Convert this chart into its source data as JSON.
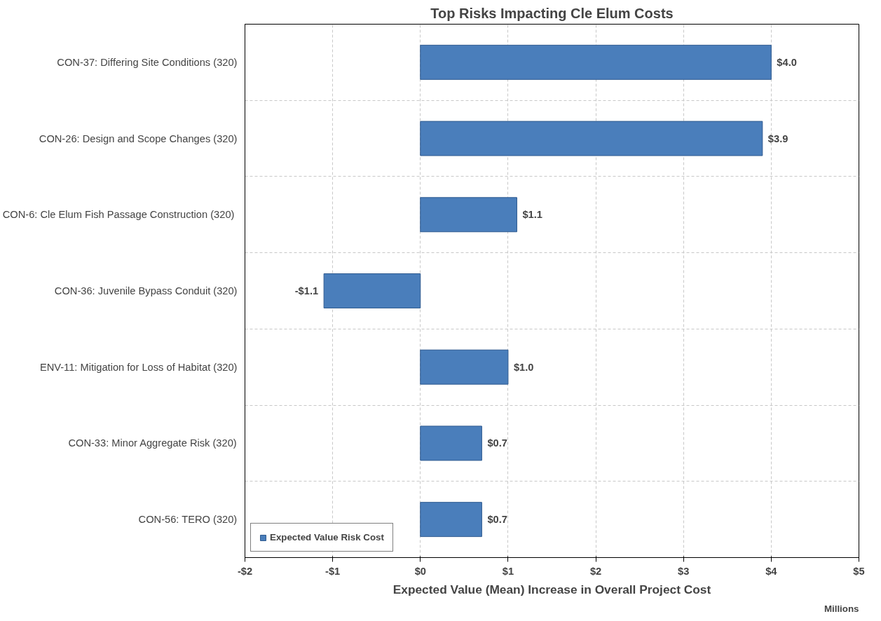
{
  "chart_data": {
    "type": "bar",
    "orientation": "horizontal",
    "title": "Top Risks Impacting Cle Elum Costs",
    "categories": [
      "CON-37: Differing Site Conditions (320)",
      "CON-26: Design and Scope Changes (320)",
      "CON-6: Cle Elum Fish Passage Construction  (320)",
      "CON-36: Juvenile Bypass Conduit (320)",
      "ENV-11: Mitigation for Loss of Habitat (320)",
      "CON-33: Minor Aggregate Risk (320)",
      "CON-56: TERO (320)"
    ],
    "series": [
      {
        "name": "Expected Value Risk Cost",
        "color": "#4a7ebb",
        "values": [
          4.0,
          3.9,
          1.1,
          -1.1,
          1.0,
          0.7,
          0.7
        ],
        "value_labels": [
          "$4.0",
          "$3.9",
          "$1.1",
          "-$1.1",
          "$1.0",
          "$0.7",
          "$0.7"
        ]
      }
    ],
    "xlim": [
      -2,
      5
    ],
    "xticks": [
      {
        "value": -2,
        "label": "-$2"
      },
      {
        "value": -1,
        "label": "-$1"
      },
      {
        "value": 0,
        "label": "$0"
      },
      {
        "value": 1,
        "label": "$1"
      },
      {
        "value": 2,
        "label": "$2"
      },
      {
        "value": 3,
        "label": "$3"
      },
      {
        "value": 4,
        "label": "$4"
      },
      {
        "value": 5,
        "label": "$5"
      }
    ],
    "xlabel": "Expected Value (Mean) Increase in Overall Project Cost",
    "annotations": [
      "Millions"
    ],
    "grid": true,
    "legend": "bottom left"
  }
}
